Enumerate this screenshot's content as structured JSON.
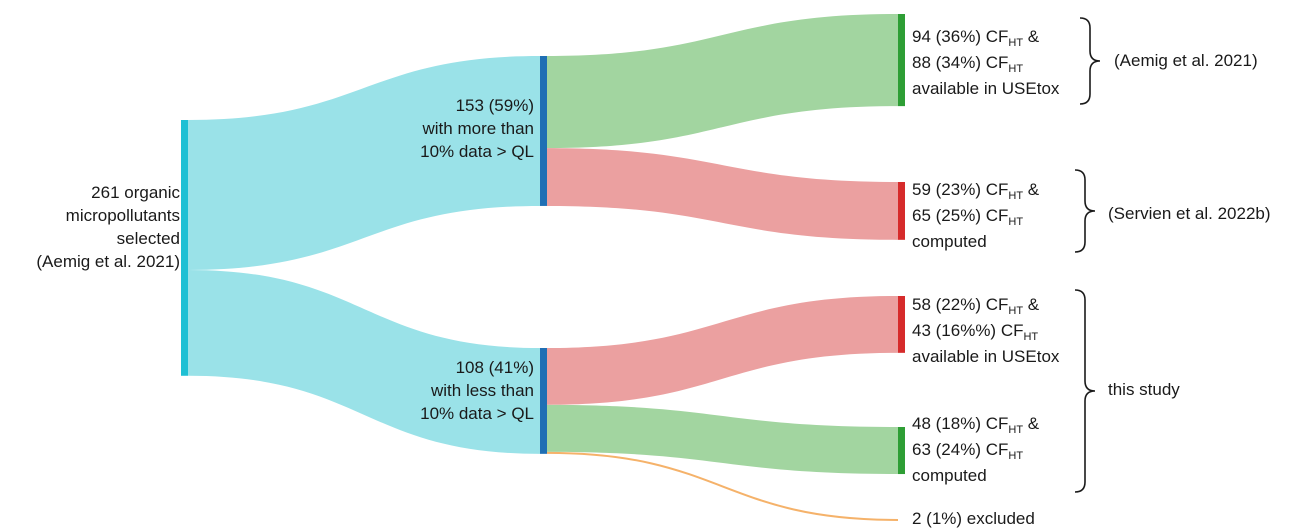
{
  "nodes": {
    "source": {
      "lines": [
        "261 organic",
        "micropollutants",
        "selected",
        "(Aemig et al. 2021)"
      ],
      "value": 261,
      "color": "#1fc0d4"
    },
    "more": {
      "lines": [
        "153 (59%)",
        "with more than",
        "10% data > QL"
      ],
      "value": 153,
      "color": "#1f6fb4"
    },
    "less": {
      "lines": [
        "108 (41%)",
        "with less than",
        "10% data > QL"
      ],
      "value": 108,
      "color": "#1f6fb4"
    },
    "avail_more": {
      "line1_pre": "94 (36%) CF",
      "line1_sub": "HT",
      "line1_post": " &",
      "line2_pre": "88 (34%) CF",
      "line2_sub": "HT",
      "line3": "available in USEtox",
      "value": 94,
      "color": "#2e9e35"
    },
    "comp_more": {
      "line1_pre": "59 (23%) CF",
      "line1_sub": "HT",
      "line1_post": " &",
      "line2_pre": "65 (25%) CF",
      "line2_sub": "HT",
      "line3": "computed",
      "value": 59,
      "color": "#d62b2b"
    },
    "avail_less": {
      "line1_pre": "58 (22%) CF",
      "line1_sub": "HT",
      "line1_post": " &",
      "line2_pre": "43 (16%%) CF",
      "line2_sub": "HT",
      "line3": "available in USEtox",
      "value": 58,
      "color": "#d62b2b"
    },
    "comp_less": {
      "line1_pre": "48 (18%) CF",
      "line1_sub": "HT",
      "line1_post": " &",
      "line2_pre": "63 (24%) CF",
      "line2_sub": "HT",
      "line3": "computed",
      "value": 48,
      "color": "#2e9e35"
    },
    "excluded": {
      "label": "2  (1%) excluded",
      "value": 2,
      "color": "#f5a34a"
    }
  },
  "links": [
    {
      "from": "source",
      "to": "more",
      "value": 153,
      "color": "#9ae2e8"
    },
    {
      "from": "source",
      "to": "less",
      "value": 108,
      "color": "#9ae2e8"
    },
    {
      "from": "more",
      "to": "avail_more",
      "value": 94,
      "color": "#a2d5a0"
    },
    {
      "from": "more",
      "to": "comp_more",
      "value": 59,
      "color": "#eba0a0"
    },
    {
      "from": "less",
      "to": "avail_less",
      "value": 58,
      "color": "#eba0a0"
    },
    {
      "from": "less",
      "to": "comp_less",
      "value": 48,
      "color": "#a2d5a0"
    },
    {
      "from": "less",
      "to": "excluded",
      "value": 2,
      "color": "#f5b26a"
    }
  ],
  "braces": {
    "aemig": "(Aemig et al. 2021)",
    "servien": "(Servien et al. 2022b)",
    "this_study": "this study"
  }
}
